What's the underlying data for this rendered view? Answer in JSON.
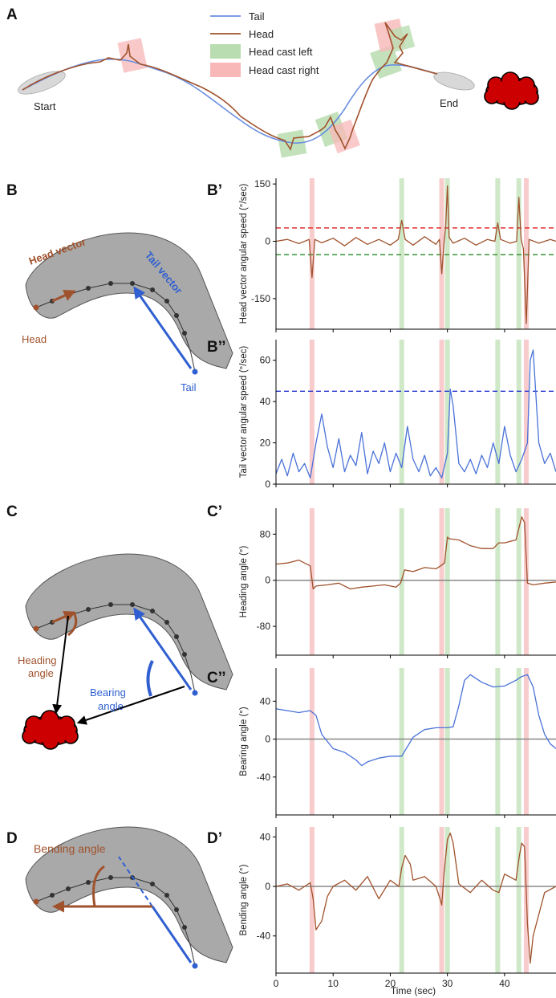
{
  "panels": {
    "A": "A",
    "B": "B",
    "Bp": "B’",
    "Bpp": "B’’",
    "C": "C",
    "Cp": "C’",
    "Cpp": "C’’",
    "D": "D",
    "Dp": "D’"
  },
  "legend": {
    "tail": "Tail",
    "head": "Head",
    "cast_left": "Head cast left",
    "cast_right": "Head cast right"
  },
  "trajectory": {
    "start": "Start",
    "end": "End"
  },
  "schematic": {
    "head_vector": "Head vector",
    "tail_vector": "Tail vector",
    "head": "Head",
    "tail": "Tail",
    "heading_angle_1": "Heading",
    "heading_angle_2": "angle",
    "bearing_angle_1": "Bearing",
    "bearing_angle_2": "angle",
    "bending_angle": "Bending angle"
  },
  "colors": {
    "head": "#a0522d",
    "tail": "#4a72d8",
    "cast_left": "#cfe8c8",
    "cast_right": "#f8cccc",
    "odor": "#cc0000"
  },
  "x_axis": {
    "label": "Time (sec)",
    "ticks": [
      0,
      10,
      20,
      30,
      40
    ],
    "range": [
      0,
      49
    ]
  },
  "casts": {
    "right": [
      6.3,
      29.0,
      43.8
    ],
    "left": [
      22.0,
      30.0,
      38.8,
      42.5
    ]
  },
  "chart_data": [
    {
      "id": "Bp",
      "type": "line",
      "ylabel": "Head vector angular speed (°/sec)",
      "ylim": [
        -230,
        165
      ],
      "yticks": [
        -150,
        0,
        150
      ],
      "thresholds": [
        {
          "y": 35,
          "color": "#e03030"
        },
        {
          "y": -35,
          "color": "#2a8a2a"
        }
      ],
      "series": [
        {
          "color": "#a0522d",
          "x": [
            0,
            2,
            4,
            5.8,
            6.3,
            6.8,
            8,
            10,
            12,
            14,
            16,
            18,
            20,
            21.4,
            22,
            22.6,
            24,
            26,
            28,
            28.6,
            29,
            29.4,
            29.7,
            30,
            30.3,
            31,
            33,
            35,
            37,
            38.3,
            38.8,
            39.3,
            41,
            42.1,
            42.5,
            42.9,
            43.3,
            43.8,
            44.3,
            46,
            48,
            49
          ],
          "y": [
            0,
            5,
            -6,
            5,
            -95,
            5,
            -4,
            8,
            -12,
            10,
            -8,
            5,
            -10,
            5,
            55,
            5,
            -10,
            12,
            -8,
            5,
            -85,
            -5,
            40,
            145,
            10,
            -5,
            8,
            -10,
            5,
            0,
            48,
            5,
            -5,
            0,
            115,
            5,
            -20,
            -215,
            5,
            -5,
            5,
            0
          ]
        }
      ]
    },
    {
      "id": "Bpp",
      "type": "line",
      "ylabel": "Tail vector angular speed (°/sec)",
      "ylim": [
        0,
        70
      ],
      "yticks": [
        0,
        20,
        40,
        60
      ],
      "thresholds": [
        {
          "y": 45,
          "color": "#2a3ad0"
        }
      ],
      "series": [
        {
          "color": "#4a72d8",
          "x": [
            0,
            1,
            2,
            3,
            4,
            5,
            6,
            7,
            8,
            9,
            10,
            11,
            12,
            13,
            14,
            15,
            16,
            17,
            18,
            19,
            20,
            21,
            22,
            23,
            24,
            25,
            26,
            27,
            28,
            29,
            30,
            30.5,
            31,
            32,
            33,
            34,
            35,
            36,
            37,
            38,
            39,
            40,
            41,
            42,
            43,
            44,
            44.5,
            45,
            46,
            47,
            48,
            49
          ],
          "y": [
            5,
            12,
            4,
            15,
            6,
            10,
            3,
            20,
            34,
            18,
            8,
            22,
            6,
            14,
            9,
            25,
            5,
            16,
            10,
            20,
            6,
            15,
            8,
            28,
            12,
            6,
            14,
            4,
            8,
            3,
            15,
            46,
            38,
            10,
            6,
            12,
            5,
            14,
            8,
            20,
            10,
            28,
            14,
            6,
            12,
            20,
            60,
            65,
            20,
            10,
            15,
            6
          ]
        }
      ]
    },
    {
      "id": "Cp",
      "type": "line",
      "ylabel": "Heading angle (°)",
      "ylim": [
        -130,
        125
      ],
      "yticks": [
        -80,
        0,
        80
      ],
      "zero": true,
      "series": [
        {
          "color": "#a0522d",
          "x": [
            0,
            2,
            4,
            6,
            6.5,
            7,
            9,
            11,
            13,
            15,
            17,
            19,
            21,
            21.8,
            22.5,
            24,
            26,
            28,
            28.8,
            29.5,
            30,
            30.3,
            32,
            34,
            36,
            38,
            39,
            40,
            42,
            42.5,
            43,
            43.5,
            44,
            45,
            47,
            49
          ],
          "y": [
            28,
            30,
            35,
            25,
            -15,
            -10,
            -8,
            -5,
            -15,
            -12,
            -10,
            -8,
            -12,
            -5,
            18,
            15,
            22,
            20,
            25,
            30,
            75,
            72,
            70,
            60,
            55,
            55,
            65,
            65,
            70,
            90,
            110,
            100,
            -5,
            -8,
            -5,
            -3
          ]
        }
      ]
    },
    {
      "id": "Cpp",
      "type": "line",
      "ylabel": "Bearing angle (°)",
      "ylim": [
        -80,
        75
      ],
      "yticks": [
        -40,
        0,
        40
      ],
      "zero": true,
      "series": [
        {
          "color": "#4a72d8",
          "x": [
            0,
            2,
            4,
            6,
            7,
            8,
            10,
            12,
            14,
            15,
            16,
            18,
            20,
            22,
            23,
            24,
            26,
            28,
            30,
            31,
            32,
            33,
            34,
            36,
            38,
            40,
            42,
            43,
            44,
            45,
            46,
            47,
            48,
            49
          ],
          "y": [
            32,
            30,
            28,
            30,
            25,
            5,
            -10,
            -14,
            -22,
            -28,
            -24,
            -20,
            -18,
            -18,
            -8,
            2,
            10,
            12,
            12,
            13,
            35,
            62,
            68,
            60,
            55,
            56,
            62,
            66,
            68,
            55,
            25,
            5,
            -5,
            -10
          ]
        }
      ]
    },
    {
      "id": "Dp",
      "type": "line",
      "ylabel": "Bending angle (°)",
      "ylim": [
        -70,
        48
      ],
      "yticks": [
        -40,
        0,
        40
      ],
      "zero": true,
      "series": [
        {
          "color": "#a0522d",
          "x": [
            0,
            2,
            4,
            6,
            6.5,
            7,
            8,
            9,
            10,
            12,
            14,
            16,
            18,
            20,
            21.5,
            22,
            22.6,
            23.5,
            24,
            26,
            28,
            28.7,
            29,
            29.4,
            30,
            30.5,
            31,
            32,
            34,
            36,
            38,
            39,
            40,
            42,
            42.6,
            43,
            43.5,
            44,
            44.5,
            45,
            47,
            49
          ],
          "y": [
            0,
            2,
            -3,
            3,
            -10,
            -35,
            -28,
            -8,
            0,
            5,
            -3,
            8,
            -10,
            5,
            0,
            15,
            25,
            18,
            5,
            8,
            0,
            -10,
            -15,
            10,
            38,
            43,
            35,
            2,
            -5,
            5,
            -3,
            -5,
            10,
            5,
            25,
            35,
            32,
            -30,
            -62,
            -40,
            -5,
            0
          ]
        }
      ]
    }
  ]
}
